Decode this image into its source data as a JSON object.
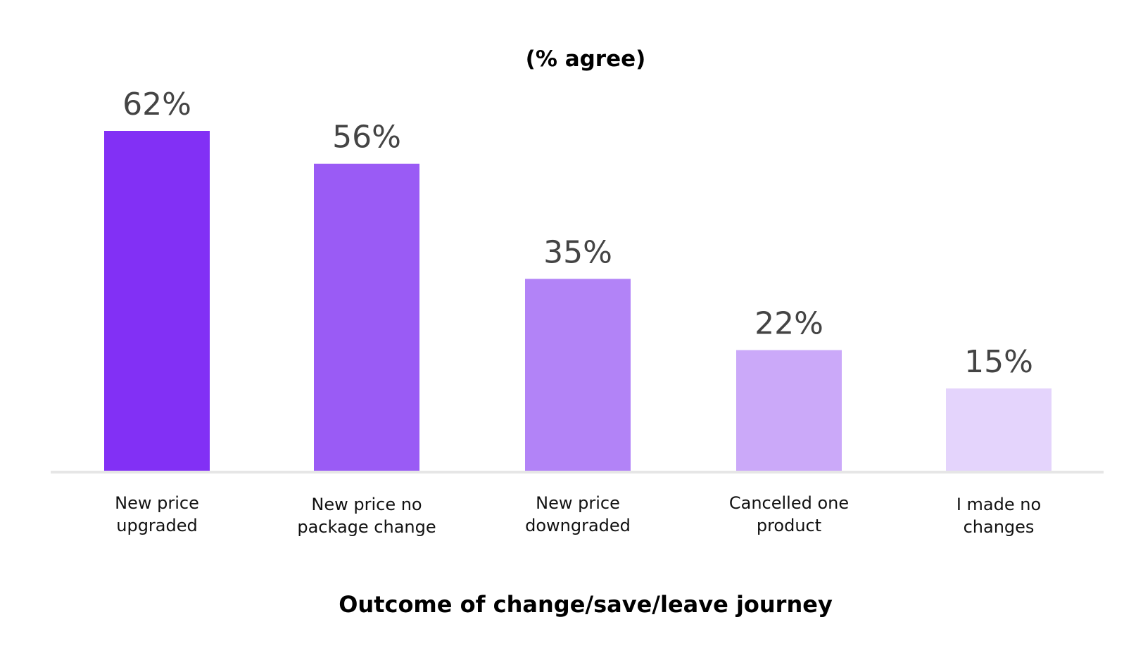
{
  "chart_data": {
    "type": "bar",
    "title": "",
    "subtitle": "(% agree)",
    "xlabel": "Outcome of change/save/leave journey",
    "ylabel": "",
    "ylim": [
      0,
      62
    ],
    "grid": false,
    "legend": "none",
    "categories": [
      [
        "New price",
        "upgraded"
      ],
      [
        "New price no",
        "package change"
      ],
      [
        "New price",
        "downgraded"
      ],
      [
        "Cancelled one",
        "product"
      ],
      [
        "I made no",
        "changes"
      ]
    ],
    "values": [
      62,
      56,
      35,
      22,
      15
    ],
    "value_labels": [
      "62%",
      "56%",
      "35%",
      "22%",
      "15%"
    ],
    "colors": [
      "#8230F5",
      "#9A5BF5",
      "#B283F7",
      "#CBA9F9",
      "#E4D4FC"
    ],
    "baseline_color": "#E6E6E6"
  }
}
